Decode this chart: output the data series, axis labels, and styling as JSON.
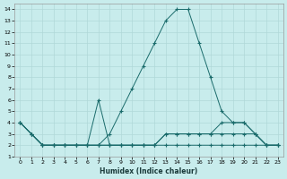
{
  "xlabel": "Humidex (Indice chaleur)",
  "background_color": "#c8ecec",
  "grid_color": "#b0d8d8",
  "line_color": "#1a6b6b",
  "xlim": [
    -0.5,
    23.5
  ],
  "ylim": [
    1,
    14.5
  ],
  "xticks": [
    0,
    1,
    2,
    3,
    4,
    5,
    6,
    7,
    8,
    9,
    10,
    11,
    12,
    13,
    14,
    15,
    16,
    17,
    18,
    19,
    20,
    21,
    22,
    23
  ],
  "yticks": [
    1,
    2,
    3,
    4,
    5,
    6,
    7,
    8,
    9,
    10,
    11,
    12,
    13,
    14
  ],
  "series": [
    {
      "x": [
        0,
        1,
        2,
        3,
        4,
        5,
        6,
        7,
        8,
        9,
        10,
        11,
        12,
        13,
        14,
        15,
        16,
        17,
        18,
        19,
        20,
        21,
        22,
        23
      ],
      "y": [
        4,
        3,
        2,
        2,
        2,
        2,
        2,
        2,
        3,
        5,
        7,
        9,
        11,
        13,
        14,
        14,
        11,
        8,
        5,
        4,
        4,
        3,
        2,
        2
      ]
    },
    {
      "x": [
        0,
        1,
        2,
        3,
        4,
        5,
        6,
        7,
        8,
        9,
        10,
        11,
        12,
        13,
        14,
        15,
        16,
        17,
        18,
        19,
        20,
        21,
        22,
        23
      ],
      "y": [
        4,
        3,
        2,
        2,
        2,
        2,
        2,
        6,
        2,
        2,
        2,
        2,
        2,
        3,
        3,
        3,
        3,
        3,
        4,
        4,
        4,
        3,
        2,
        2
      ]
    },
    {
      "x": [
        0,
        1,
        2,
        3,
        4,
        5,
        6,
        7,
        8,
        9,
        10,
        11,
        12,
        13,
        14,
        15,
        16,
        17,
        18,
        19,
        20,
        21,
        22,
        23
      ],
      "y": [
        4,
        3,
        2,
        2,
        2,
        2,
        2,
        2,
        2,
        2,
        2,
        2,
        2,
        3,
        3,
        3,
        3,
        3,
        3,
        3,
        3,
        3,
        2,
        2
      ]
    },
    {
      "x": [
        0,
        1,
        2,
        3,
        4,
        5,
        6,
        7,
        8,
        9,
        10,
        11,
        12,
        13,
        14,
        15,
        16,
        17,
        18,
        19,
        20,
        21,
        22,
        23
      ],
      "y": [
        4,
        3,
        2,
        2,
        2,
        2,
        2,
        2,
        2,
        2,
        2,
        2,
        2,
        2,
        2,
        2,
        2,
        2,
        2,
        2,
        2,
        2,
        2,
        2
      ]
    }
  ]
}
